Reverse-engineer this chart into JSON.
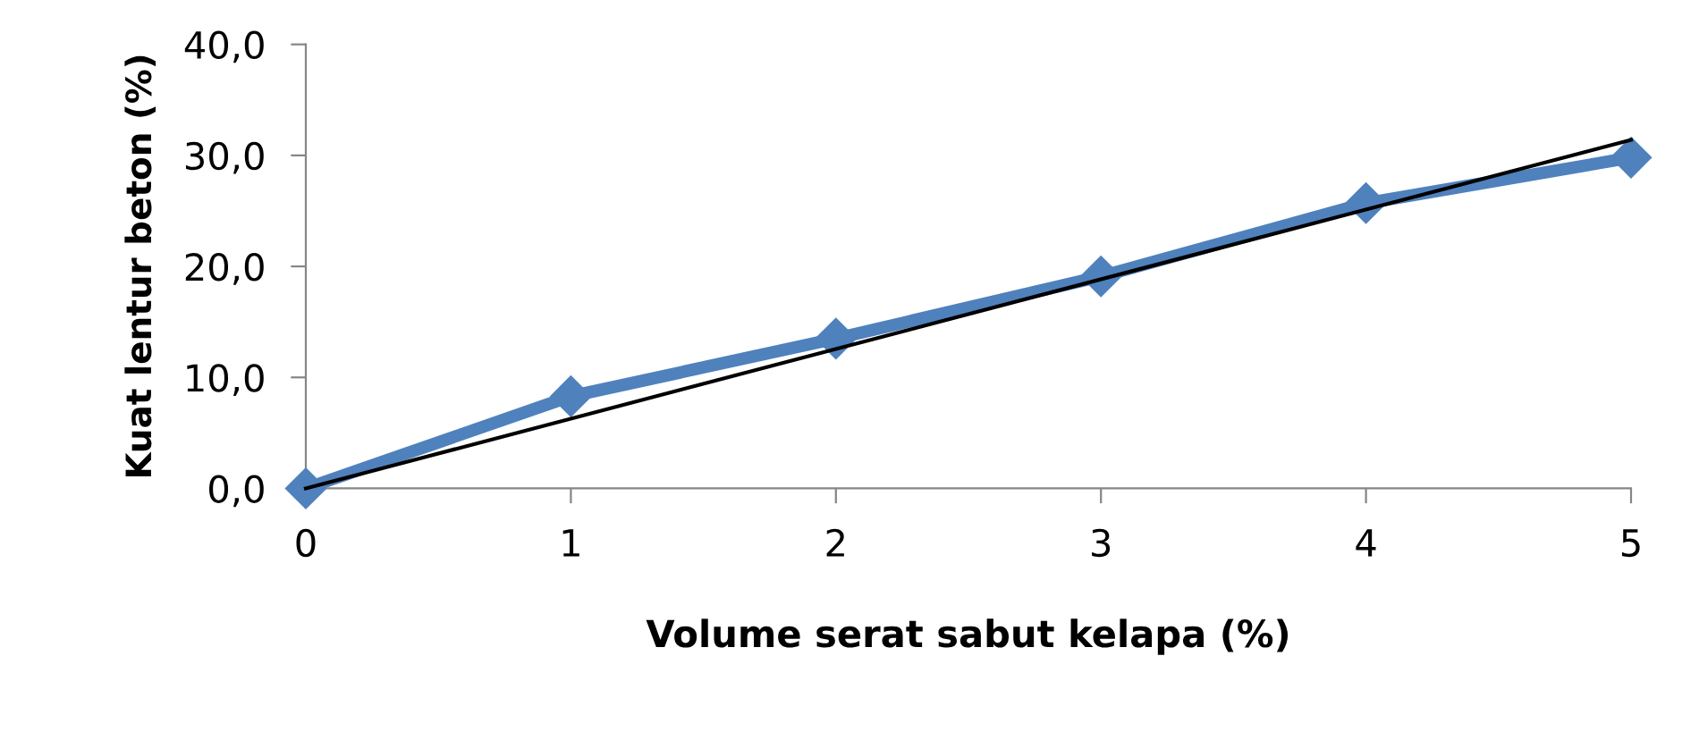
{
  "chart_data": {
    "type": "line",
    "xlabel": "Volume serat sabut kelapa (%)",
    "ylabel": "Kuat lentur beton (%)",
    "x": [
      0,
      1,
      2,
      3,
      4,
      5
    ],
    "series": [
      {
        "color": "#4f81bd",
        "values": [
          0.0,
          8.3,
          13.5,
          19.1,
          25.7,
          29.8
        ],
        "marker": "diamond"
      },
      {
        "type": "line",
        "color": "#000000",
        "x": [
          0,
          5
        ],
        "values": [
          0.0,
          31.4
        ],
        "marker": "none"
      }
    ],
    "xlim": [
      0,
      5
    ],
    "xticks": [
      0,
      1,
      2,
      3,
      4,
      5
    ],
    "ylim": [
      0,
      40
    ],
    "yticks": [
      {
        "value": 0,
        "label": "0,0"
      },
      {
        "value": 10,
        "label": "10,0"
      },
      {
        "value": 20,
        "label": "20,0"
      },
      {
        "value": 30,
        "label": "30,0"
      },
      {
        "value": 40,
        "label": "40,0"
      }
    ],
    "grid": false,
    "legend": false
  }
}
